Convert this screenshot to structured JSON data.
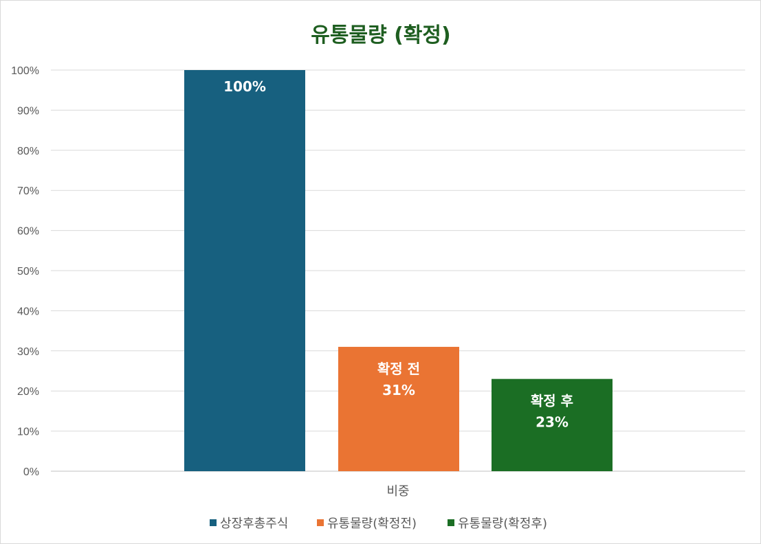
{
  "chart_data": {
    "type": "bar",
    "title": "유통물량 (확정)",
    "title_color": "#1e5e20",
    "categories": [
      "비중"
    ],
    "yticks": [
      "0%",
      "10%",
      "20%",
      "30%",
      "40%",
      "50%",
      "60%",
      "70%",
      "80%",
      "90%",
      "100%"
    ],
    "ylim": [
      0,
      100
    ],
    "unit": "%",
    "grid": true,
    "legend_position": "bottom",
    "series": [
      {
        "name": "상장후총주식",
        "values": [
          100
        ],
        "color": "#17607f",
        "label_title": "",
        "label_value": "100%"
      },
      {
        "name": "유통물량(확정전)",
        "values": [
          31
        ],
        "color": "#ea7433",
        "label_title": "확정 전",
        "label_value": "31%"
      },
      {
        "name": "유통물량(확정후)",
        "values": [
          23
        ],
        "color": "#1b6e24",
        "label_title": "확정 후",
        "label_value": "23%"
      }
    ]
  }
}
